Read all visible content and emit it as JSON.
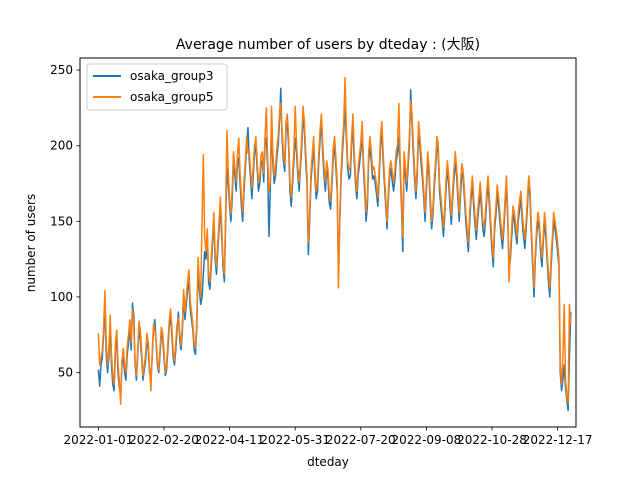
{
  "chart_data": {
    "type": "line",
    "title": "Average number of users by dteday : (大阪)",
    "xlabel": "dteday",
    "ylabel": "number of users",
    "xlim": [
      "2021-12-18",
      "2022-12-31"
    ],
    "ylim": [
      14,
      258
    ],
    "x_ticks": [
      "2022-01-01",
      "2022-02-20",
      "2022-04-11",
      "2022-05-31",
      "2022-07-20",
      "2022-09-08",
      "2022-10-28",
      "2022-12-17"
    ],
    "y_ticks": [
      50,
      100,
      150,
      200,
      250
    ],
    "grid": false,
    "legend_position": "upper-left",
    "series": [
      {
        "name": "osaka_group3",
        "color": "#1f77b4",
        "values": [
          52,
          41,
          55,
          60,
          75,
          95,
          62,
          50,
          60,
          80,
          55,
          42,
          38,
          65,
          72,
          50,
          40,
          35,
          55,
          60,
          50,
          45,
          62,
          70,
          78,
          65,
          96,
          88,
          55,
          45,
          62,
          80,
          72,
          60,
          45,
          52,
          58,
          70,
          66,
          50,
          45,
          60,
          78,
          85,
          70,
          55,
          50,
          62,
          76,
          72,
          60,
          48,
          52,
          66,
          80,
          88,
          75,
          60,
          55,
          65,
          78,
          90,
          72,
          65,
          78,
          100,
          85,
          95,
          105,
          110,
          92,
          85,
          78,
          65,
          62,
          80,
          120,
          105,
          95,
          100,
          115,
          130,
          125,
          140,
          110,
          105,
          120,
          135,
          150,
          125,
          115,
          130,
          145,
          160,
          140,
          120,
          110,
          150,
          185,
          175,
          160,
          150,
          165,
          190,
          180,
          170,
          188,
          192,
          175,
          160,
          150,
          170,
          185,
          200,
          212,
          190,
          178,
          165,
          180,
          195,
          200,
          185,
          170,
          175,
          188,
          190,
          176,
          200,
          205,
          186,
          140,
          170,
          215,
          188,
          175,
          180,
          192,
          200,
          215,
          238,
          205,
          190,
          183,
          210,
          215,
          200,
          170,
          160,
          175,
          190,
          205,
          196,
          180,
          170,
          185,
          200,
          220,
          210,
          190,
          175,
          128,
          150,
          176,
          188,
          200,
          180,
          165,
          170,
          190,
          205,
          215,
          195,
          180,
          170,
          185,
          178,
          162,
          158,
          175,
          192,
          200,
          186,
          170,
          115,
          150,
          178,
          195,
          210,
          225,
          205,
          185,
          178,
          180,
          200,
          215,
          190,
          175,
          165,
          180,
          188,
          196,
          210,
          185,
          170,
          150,
          160,
          190,
          200,
          190,
          178,
          180,
          175,
          168,
          160,
          178,
          200,
          210,
          190,
          175,
          160,
          145,
          165,
          180,
          185,
          176,
          170,
          178,
          190,
          195,
          205,
          185,
          160,
          130,
          190,
          180,
          170,
          185,
          200,
          237,
          215,
          195,
          178,
          165,
          180,
          210,
          200,
          188,
          178,
          165,
          150,
          170,
          190,
          180,
          160,
          145,
          155,
          172,
          185,
          200,
          195,
          170,
          160,
          150,
          140,
          155,
          172,
          185,
          175,
          160,
          148,
          165,
          178,
          190,
          180,
          165,
          150,
          168,
          182,
          178,
          165,
          150,
          140,
          130,
          150,
          165,
          175,
          160,
          148,
          138,
          150,
          160,
          170,
          158,
          145,
          140,
          150,
          165,
          175,
          160,
          145,
          130,
          120,
          145,
          155,
          168,
          160,
          150,
          140,
          132,
          145,
          160,
          175,
          150,
          120,
          125,
          140,
          155,
          150,
          142,
          135,
          150,
          158,
          165,
          150,
          140,
          132,
          145,
          160,
          178,
          165,
          140,
          120,
          100,
          125,
          140,
          150,
          145,
          130,
          120,
          135,
          150,
          140,
          125,
          110,
          100,
          120,
          135,
          150,
          145,
          138,
          130,
          120,
          50,
          38,
          45,
          55,
          40,
          32,
          25,
          60,
          90
        ],
        "note": null
      },
      {
        "name": "osaka_group5",
        "color": "#ff7f0e",
        "values": [
          76,
          55,
          60,
          64,
          80,
          104,
          70,
          55,
          65,
          88,
          62,
          48,
          42,
          70,
          78,
          56,
          44,
          29,
          58,
          66,
          55,
          50,
          68,
          75,
          85,
          70,
          92,
          80,
          58,
          48,
          66,
          84,
          78,
          64,
          48,
          55,
          62,
          76,
          70,
          54,
          38,
          62,
          82,
          78,
          72,
          58,
          52,
          66,
          80,
          76,
          64,
          50,
          56,
          70,
          84,
          92,
          80,
          64,
          58,
          70,
          82,
          86,
          76,
          68,
          82,
          105,
          90,
          100,
          110,
          118,
          98,
          90,
          82,
          70,
          66,
          85,
          126,
          110,
          100,
          150,
          194,
          140,
          130,
          145,
          115,
          110,
          126,
          140,
          156,
          130,
          120,
          136,
          150,
          166,
          146,
          125,
          115,
          156,
          210,
          182,
          165,
          155,
          172,
          196,
          186,
          176,
          194,
          205,
          182,
          166,
          156,
          176,
          190,
          206,
          195,
          196,
          184,
          172,
          186,
          200,
          206,
          190,
          176,
          180,
          194,
          196,
          182,
          206,
          225,
          192,
          170,
          176,
          226,
          194,
          180,
          186,
          198,
          206,
          221,
          228,
          211,
          196,
          188,
          216,
          221,
          206,
          176,
          166,
          180,
          196,
          226,
          202,
          186,
          176,
          190,
          206,
          226,
          216,
          196,
          180,
          136,
          155,
          182,
          194,
          206,
          186,
          170,
          176,
          196,
          211,
          221,
          201,
          186,
          176,
          190,
          184,
          168,
          164,
          180,
          198,
          206,
          192,
          176,
          106,
          156,
          184,
          201,
          216,
          245,
          211,
          190,
          184,
          186,
          206,
          221,
          196,
          180,
          170,
          186,
          194,
          202,
          216,
          190,
          176,
          156,
          166,
          196,
          206,
          196,
          184,
          186,
          180,
          174,
          166,
          184,
          206,
          216,
          196,
          180,
          166,
          150,
          170,
          186,
          190,
          182,
          176,
          184,
          196,
          201,
          228,
          190,
          166,
          140,
          196,
          186,
          176,
          190,
          206,
          230,
          221,
          201,
          184,
          170,
          186,
          216,
          206,
          194,
          184,
          170,
          156,
          176,
          196,
          186,
          166,
          150,
          160,
          178,
          190,
          206,
          201,
          176,
          166,
          156,
          146,
          160,
          178,
          190,
          180,
          166,
          154,
          170,
          184,
          196,
          186,
          170,
          156,
          174,
          188,
          184,
          170,
          156,
          146,
          136,
          156,
          170,
          180,
          166,
          154,
          144,
          156,
          166,
          176,
          164,
          150,
          146,
          156,
          170,
          180,
          166,
          150,
          136,
          126,
          150,
          160,
          174,
          166,
          156,
          146,
          138,
          150,
          166,
          180,
          156,
          110,
          130,
          146,
          160,
          156,
          148,
          140,
          156,
          164,
          170,
          156,
          146,
          138,
          150,
          166,
          180,
          170,
          146,
          126,
          106,
          130,
          146,
          156,
          150,
          136,
          126,
          140,
          156,
          146,
          130,
          116,
          106,
          126,
          140,
          156,
          150,
          144,
          136,
          126,
          56,
          42,
          60,
          95,
          45,
          35,
          30,
          95,
          82
        ]
      }
    ]
  }
}
